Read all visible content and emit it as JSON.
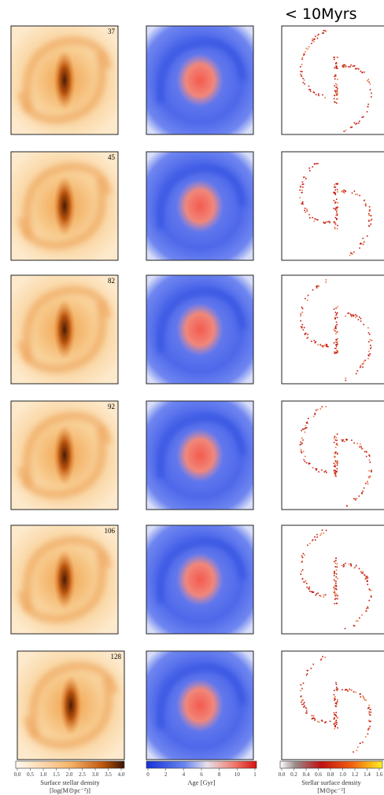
{
  "header": "< 10Myrs",
  "panels": [
    "37",
    "45",
    "82",
    "92",
    "106",
    "128"
  ],
  "colorbars": [
    {
      "ticks": [
        "0.0",
        "0.5",
        "1.0",
        "1.5",
        "2.0",
        "2.5",
        "3.0",
        "3.5",
        "4.0"
      ],
      "label": "Surface stellar density",
      "unit": "[log(M⊙pc⁻²)]"
    },
    {
      "ticks": [
        "0",
        "2",
        "4",
        "6",
        "8",
        "10",
        "1"
      ],
      "label": "Age [Gyr]"
    },
    {
      "ticks": [
        "0.0",
        "0.2",
        "0.4",
        "0.6",
        "0.8",
        "1.0",
        "1.2",
        "1.4",
        "1.6"
      ],
      "label": "Stellar surface density",
      "unit": "[M⊙pc⁻²]"
    }
  ]
}
